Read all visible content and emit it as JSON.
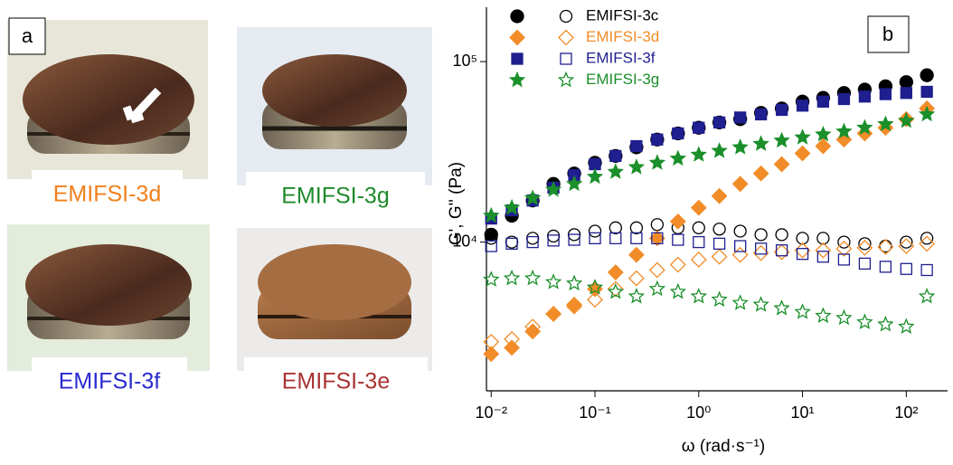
{
  "panel_a": {
    "label": "a",
    "samples": [
      {
        "label": "EMIFSI-3d",
        "color": "#f07f1c"
      },
      {
        "label": "EMIFSI-3g",
        "color": "#1e8a2a"
      },
      {
        "label": "EMIFSI-3f",
        "color": "#2a2ad0"
      },
      {
        "label": "EMIFSI-3e",
        "color": "#a83232"
      }
    ]
  },
  "chart_data": {
    "type": "scatter",
    "panel_label": "b",
    "x_label": "ω (rad·s⁻¹)",
    "y_label": "G', G'' (Pa)",
    "log_x": true,
    "log_y": true,
    "xlim": [
      0.009,
      250
    ],
    "ylim": [
      1500,
      200000
    ],
    "xticks": [
      {
        "value": 0.01,
        "label": "10⁻²"
      },
      {
        "value": 0.1,
        "label": "10⁻¹"
      },
      {
        "value": 1,
        "label": "10⁰"
      },
      {
        "value": 10,
        "label": "10¹"
      },
      {
        "value": 100,
        "label": "10²"
      }
    ],
    "yticks": [
      {
        "value": 10000,
        "label": "10⁴"
      },
      {
        "value": 100000,
        "label": "10⁵"
      }
    ],
    "x": [
      0.01,
      0.0158,
      0.0251,
      0.0398,
      0.0631,
      0.1,
      0.158,
      0.251,
      0.398,
      0.631,
      1,
      1.58,
      2.51,
      3.98,
      6.31,
      10,
      15.8,
      25.1,
      39.8,
      63.1,
      100,
      158
    ],
    "series": [
      {
        "name": "EMIFSI-3c",
        "color": "#000000",
        "marker": "circle",
        "values": [
          11000,
          14000,
          17000,
          21000,
          24000,
          27500,
          30000,
          33500,
          37000,
          40000,
          43000,
          46000,
          48000,
          52000,
          55000,
          60000,
          63000,
          67000,
          70000,
          73000,
          77000,
          84000
        ],
        "loss_values": [
          10500,
          10000,
          10500,
          10800,
          11000,
          11500,
          12000,
          12000,
          12500,
          12000,
          12000,
          11800,
          11500,
          11000,
          11000,
          10500,
          10500,
          10000,
          9800,
          9500,
          10000,
          10500
        ]
      },
      {
        "name": "EMIFSI-3d",
        "color": "#f28c28",
        "marker": "diamond",
        "values": [
          2400,
          2600,
          3200,
          4000,
          4500,
          5500,
          6800,
          8500,
          10500,
          13000,
          15500,
          18000,
          21000,
          24000,
          27000,
          31000,
          34000,
          37000,
          40000,
          43000,
          48000,
          55000
        ],
        "loss_values": [
          2800,
          2900,
          3400,
          4000,
          4400,
          4800,
          5500,
          6300,
          7000,
          7500,
          8000,
          8300,
          8500,
          8700,
          8800,
          9000,
          9000,
          9200,
          9300,
          9400,
          9500,
          9800
        ]
      },
      {
        "name": "EMIFSI-3f",
        "color": "#1f1f8f",
        "marker": "square",
        "values": [
          13500,
          15000,
          17000,
          20000,
          23500,
          27000,
          30000,
          34000,
          37000,
          40000,
          43000,
          46000,
          49000,
          51000,
          54000,
          57000,
          60000,
          62000,
          64000,
          66000,
          67000,
          68000
        ],
        "loss_values": [
          9500,
          9800,
          10000,
          10200,
          10300,
          10500,
          10500,
          10500,
          10500,
          10300,
          10000,
          9800,
          9500,
          9200,
          9000,
          8600,
          8300,
          8000,
          7600,
          7300,
          7100,
          7000
        ]
      },
      {
        "name": "EMIFSI-3g",
        "color": "#1a8f2a",
        "marker": "star",
        "values": [
          14000,
          15500,
          17500,
          19500,
          21000,
          23000,
          24500,
          26000,
          27500,
          29000,
          30500,
          32000,
          33500,
          35000,
          36500,
          38000,
          39500,
          41000,
          43000,
          45000,
          47000,
          51000
        ],
        "loss_values": [
          6200,
          6300,
          6300,
          6000,
          5900,
          5600,
          5300,
          5000,
          5500,
          5300,
          5000,
          4800,
          4600,
          4500,
          4300,
          4100,
          3900,
          3800,
          3600,
          3500,
          3400,
          5000
        ]
      }
    ]
  }
}
